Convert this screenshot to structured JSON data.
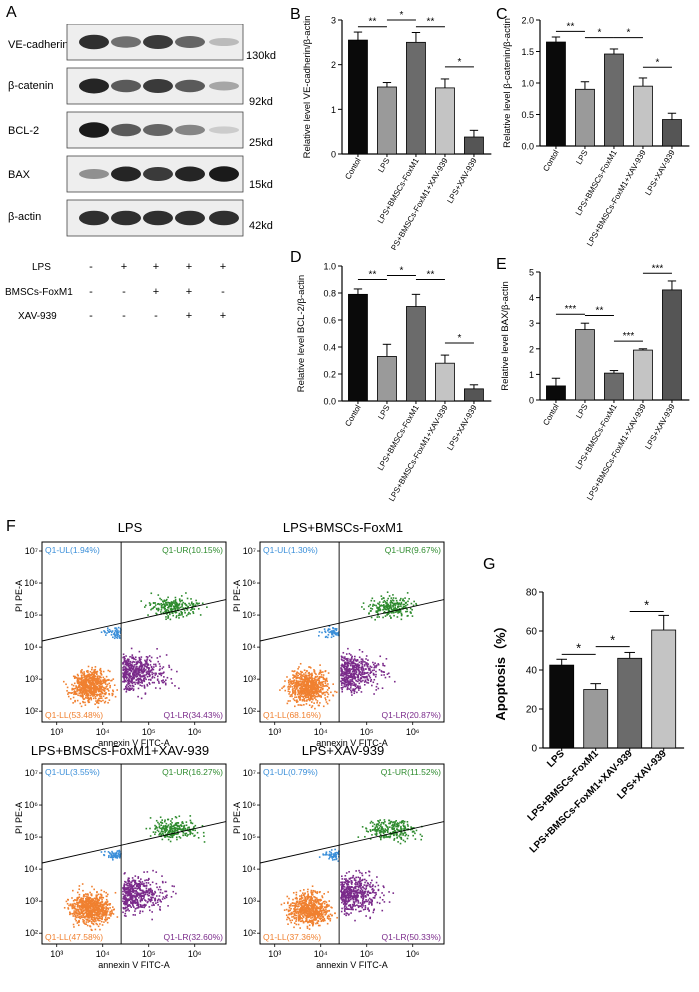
{
  "panel_letters": {
    "a": "A",
    "b": "B",
    "c": "C",
    "d": "D",
    "e": "E",
    "f": "F",
    "g": "G"
  },
  "western_blot": {
    "proteins": [
      {
        "name": "VE-cadherin",
        "kd": "130kd",
        "intensity": [
          0.85,
          0.55,
          0.8,
          0.6,
          0.2
        ]
      },
      {
        "name": "β-catenin",
        "kd": "92kd",
        "intensity": [
          0.9,
          0.65,
          0.8,
          0.65,
          0.3
        ]
      },
      {
        "name": "BCL-2",
        "kd": "25kd",
        "intensity": [
          0.95,
          0.65,
          0.6,
          0.45,
          0.12
        ]
      },
      {
        "name": "BAX",
        "kd": "15kd",
        "intensity": [
          0.4,
          0.9,
          0.8,
          0.9,
          0.95
        ]
      },
      {
        "name": "β-actin",
        "kd": "42kd",
        "intensity": [
          0.85,
          0.85,
          0.85,
          0.85,
          0.85
        ]
      }
    ],
    "conditions": [
      {
        "name": "LPS",
        "signs": [
          "-",
          "+",
          "+",
          "+",
          "+"
        ]
      },
      {
        "name": "BMSCs-FoxM1",
        "signs": [
          "-",
          "-",
          "+",
          "+",
          "-"
        ]
      },
      {
        "name": "XAV-939",
        "signs": [
          "-",
          "-",
          "-",
          "+",
          "+"
        ]
      }
    ]
  },
  "chart_data": [
    {
      "id": "B",
      "type": "bar",
      "categories": [
        "Contol",
        "LPS",
        "LPS+BMSCs-FoxM1",
        "LPS+BMSCs-FoxM1+XAV-939",
        "LPS+XAV-939"
      ],
      "values": [
        2.55,
        1.5,
        2.5,
        1.48,
        0.38
      ],
      "errors": [
        0.18,
        0.1,
        0.22,
        0.2,
        0.15
      ],
      "colors": [
        "#0a0a0a",
        "#9a9a9a",
        "#6b6b6b",
        "#c4c4c4",
        "#555555"
      ],
      "ylabel": "Relative level VE-cadherin/β-actin",
      "ylim": [
        0,
        3
      ],
      "yticks": [
        "0",
        "1",
        "2",
        "3"
      ],
      "ytick_values": [
        0,
        1,
        2,
        3
      ],
      "significance": [
        {
          "from": 0,
          "to": 1,
          "label": "**",
          "level": 2.85
        },
        {
          "from": 1,
          "to": 2,
          "label": "*",
          "level": 3.0
        },
        {
          "from": 2,
          "to": 3,
          "label": "**",
          "level": 2.85
        },
        {
          "from": 3,
          "to": 4,
          "label": "*",
          "level": 1.95
        }
      ]
    },
    {
      "id": "C",
      "type": "bar",
      "categories": [
        "Contol",
        "LPS",
        "LPS+BMSCs-FoxM1",
        "LPS+BMSCs-FoxM1+XAV-939",
        "LPS+XAV-939"
      ],
      "values": [
        1.65,
        0.9,
        1.46,
        0.95,
        0.42
      ],
      "errors": [
        0.08,
        0.12,
        0.08,
        0.13,
        0.1
      ],
      "colors": [
        "#0a0a0a",
        "#9a9a9a",
        "#6b6b6b",
        "#c4c4c4",
        "#555555"
      ],
      "ylabel": "Relative level β-catenin/β-actin",
      "ylim": [
        0,
        2
      ],
      "yticks": [
        "0.0",
        "0.5",
        "1.0",
        "1.5",
        "2.0"
      ],
      "ytick_values": [
        0,
        0.5,
        1,
        1.5,
        2
      ],
      "significance": [
        {
          "from": 0,
          "to": 1,
          "label": "**",
          "level": 1.82
        },
        {
          "from": 1,
          "to": 2,
          "label": "*",
          "level": 1.72
        },
        {
          "from": 2,
          "to": 3,
          "label": "*",
          "level": 1.72
        },
        {
          "from": 3,
          "to": 4,
          "label": "*",
          "level": 1.25
        }
      ]
    },
    {
      "id": "D",
      "type": "bar",
      "categories": [
        "Contol",
        "LPS",
        "LPS+BMSCs-FoxM1",
        "LPS+BMSCs-FoxM1+XAV-939",
        "LPS+XAV-939"
      ],
      "values": [
        0.79,
        0.33,
        0.7,
        0.28,
        0.09
      ],
      "errors": [
        0.04,
        0.09,
        0.09,
        0.06,
        0.03
      ],
      "colors": [
        "#0a0a0a",
        "#9a9a9a",
        "#6b6b6b",
        "#c4c4c4",
        "#555555"
      ],
      "ylabel": "Relative level BCL-2/β-actin",
      "ylim": [
        0,
        1.0
      ],
      "yticks": [
        "0.0",
        "0.2",
        "0.4",
        "0.6",
        "0.8",
        "1.0"
      ],
      "ytick_values": [
        0,
        0.2,
        0.4,
        0.6,
        0.8,
        1.0
      ],
      "significance": [
        {
          "from": 0,
          "to": 1,
          "label": "**",
          "level": 0.9
        },
        {
          "from": 1,
          "to": 2,
          "label": "*",
          "level": 0.93
        },
        {
          "from": 2,
          "to": 3,
          "label": "**",
          "level": 0.9
        },
        {
          "from": 3,
          "to": 4,
          "label": "*",
          "level": 0.43
        }
      ]
    },
    {
      "id": "E",
      "type": "bar",
      "categories": [
        "Contol",
        "LPS",
        "LPS+BMSCs-FoxM1",
        "LPS+BMSCs-FoxM1+XAV-939",
        "LPS+XAV-939"
      ],
      "values": [
        0.55,
        2.75,
        1.05,
        1.95,
        4.3
      ],
      "errors": [
        0.3,
        0.25,
        0.1,
        0.05,
        0.35
      ],
      "colors": [
        "#0a0a0a",
        "#9a9a9a",
        "#6b6b6b",
        "#c4c4c4",
        "#555555"
      ],
      "ylabel": "Relative level BAX/β-actin",
      "ylim": [
        0,
        5
      ],
      "yticks": [
        "0",
        "1",
        "2",
        "3",
        "4",
        "5"
      ],
      "ytick_values": [
        0,
        1,
        2,
        3,
        4,
        5
      ],
      "significance": [
        {
          "from": 0,
          "to": 1,
          "label": "***",
          "level": 3.35
        },
        {
          "from": 1,
          "to": 2,
          "label": "**",
          "level": 3.3
        },
        {
          "from": 2,
          "to": 3,
          "label": "***",
          "level": 2.3
        },
        {
          "from": 3,
          "to": 4,
          "label": "***",
          "level": 4.95
        }
      ]
    },
    {
      "id": "G",
      "type": "bar",
      "categories": [
        "LPS",
        "LPS+BMSCs-FoxM1",
        "LPS+BMSCs-FoxM1+XAV-939",
        "LPS+XAV-939"
      ],
      "values": [
        42.5,
        30,
        46,
        60.5
      ],
      "errors": [
        3,
        3,
        3,
        7.5
      ],
      "colors": [
        "#0a0a0a",
        "#9a9a9a",
        "#6b6b6b",
        "#c4c4c4"
      ],
      "ylabel": "Apoptosis（%）",
      "ylim": [
        0,
        80
      ],
      "yticks": [
        "0",
        "20",
        "40",
        "60",
        "80"
      ],
      "ytick_values": [
        0,
        20,
        40,
        60,
        80
      ],
      "significance": [
        {
          "from": 0,
          "to": 1,
          "label": "*",
          "level": 48
        },
        {
          "from": 1,
          "to": 2,
          "label": "*",
          "level": 52
        },
        {
          "from": 2,
          "to": 3,
          "label": "*",
          "level": 70
        }
      ]
    }
  ],
  "flow_plots": [
    {
      "title": "LPS",
      "ul": "Q1-UL(1.94%)",
      "ur": "Q1-UR(10.15%)",
      "ll": "Q1-LL(53.48%)",
      "lr": "Q1-LR(34.43%)"
    },
    {
      "title": "LPS+BMSCs-FoxM1",
      "ul": "Q1-UL(1.30%)",
      "ur": "Q1-UR(9.67%)",
      "ll": "Q1-LL(68.16%)",
      "lr": "Q1-LR(20.87%)"
    },
    {
      "title": "LPS+BMSCs-FoxM1+XAV-939",
      "ul": "Q1-UL(3.55%)",
      "ur": "Q1-UR(16.27%)",
      "ll": "Q1-LL(47.58%)",
      "lr": "Q1-LR(32.60%)"
    },
    {
      "title": "LPS+XAV-939",
      "ul": "Q1-UL(0.79%)",
      "ur": "Q1-UR(11.52%)",
      "ll": "Q1-LL(37.36%)",
      "lr": "Q1-LR(50.33%)"
    }
  ],
  "flow_axes": {
    "xlabel": "annexin V FITC-A",
    "ylabel": "PI PE-A",
    "xticks": [
      "10³",
      "10⁴",
      "10⁵",
      "10⁶"
    ],
    "yticks": [
      "10²",
      "10³",
      "10⁴",
      "10⁵",
      "10⁶",
      "10⁷"
    ]
  },
  "colors": {
    "ul": "#3b8fd9",
    "ur": "#2e8b2e",
    "ll": "#f08030",
    "lr": "#7a2a8a"
  }
}
